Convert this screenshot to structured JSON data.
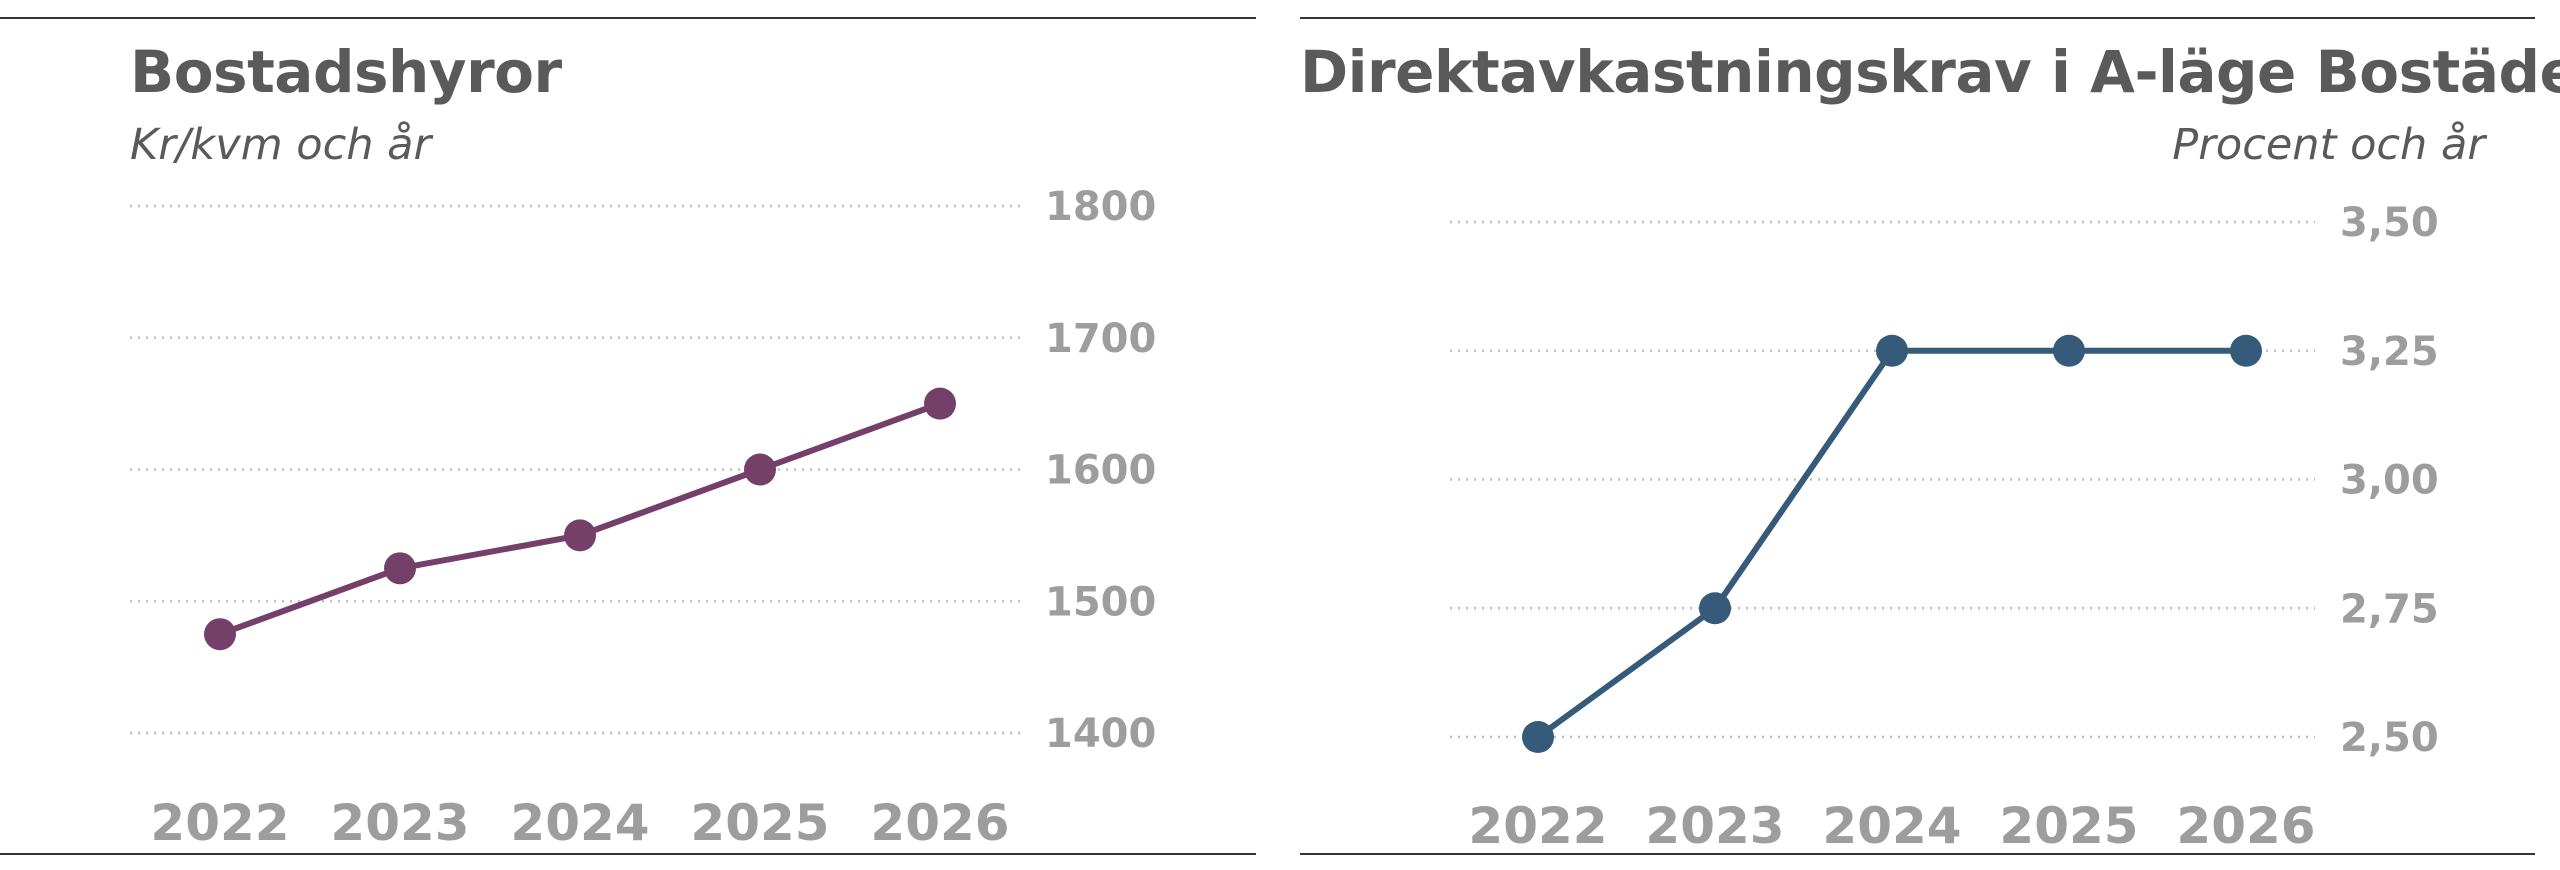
{
  "chart_data": [
    {
      "type": "line",
      "title": "Bostadshyror",
      "subtitle": "Kr/kvm och år",
      "categories": [
        "2022",
        "2023",
        "2024",
        "2025",
        "2026"
      ],
      "values": [
        1475,
        1525,
        1550,
        1600,
        1650
      ],
      "ylim": [
        1400,
        1800
      ],
      "yticks": [
        1800,
        1700,
        1600,
        1500,
        1400
      ],
      "yticklabels": [
        "1800",
        "1700",
        "1600",
        "1500",
        "1400"
      ],
      "grid": true,
      "color": "#74406a"
    },
    {
      "type": "line",
      "title": "Direktavkastningskrav i A-läge Bostäder",
      "subtitle": "Procent och år",
      "categories": [
        "2022",
        "2023",
        "2024",
        "2025",
        "2026"
      ],
      "values": [
        2.5,
        2.75,
        3.25,
        3.25,
        3.25
      ],
      "ylim": [
        2.5,
        3.5
      ],
      "yticks": [
        3.5,
        3.25,
        3.0,
        2.75,
        2.5
      ],
      "yticklabels": [
        "3,50",
        "3,25",
        "3,00",
        "2,75",
        "2,50"
      ],
      "grid": true,
      "color": "#365a79"
    }
  ]
}
